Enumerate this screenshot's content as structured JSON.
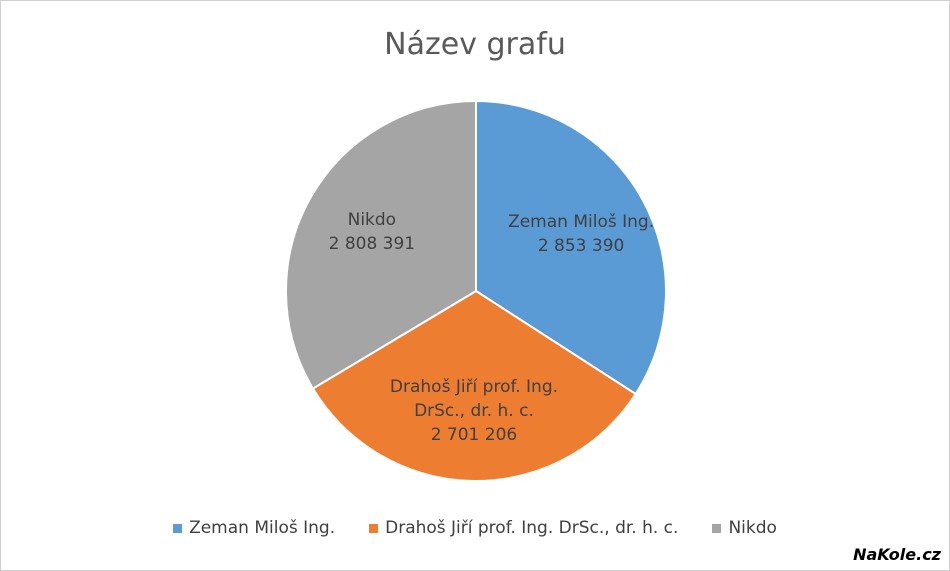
{
  "chart_data": {
    "type": "pie",
    "title": "Název grafu",
    "categories": [
      "Zeman Miloš Ing.",
      "Drahoš Jiří prof. Ing. DrSc., dr. h. c.",
      "Nikdo"
    ],
    "values": [
      2853390,
      2701206,
      2808391
    ],
    "value_labels": [
      "2 853 390",
      "2 701 206",
      "2 808 391"
    ],
    "colors": [
      "#5b9bd5",
      "#ed7d31",
      "#a5a5a5"
    ],
    "legend": "bottom"
  },
  "watermark": "NaKole.cz"
}
